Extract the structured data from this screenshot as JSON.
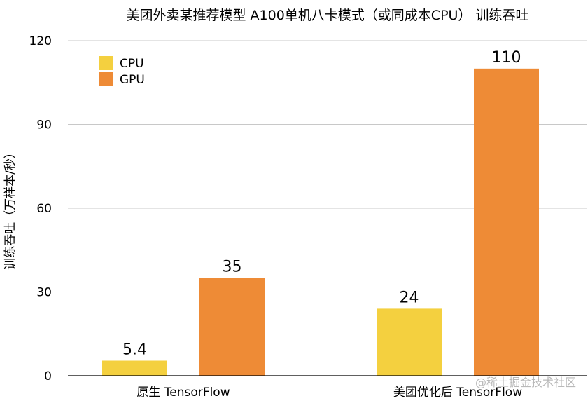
{
  "chart_data": {
    "type": "bar",
    "title": "美团外卖某推荐模型 A100单机八卡模式（或同成本CPU） 训练吞吐",
    "xlabel": "",
    "ylabel": "训练吞吐（万样本/秒）",
    "categories": [
      "原生 TensorFlow",
      "美团优化后 TensorFlow"
    ],
    "series": [
      {
        "name": "CPU",
        "values": [
          5.4,
          24
        ],
        "color": "#F4D03F"
      },
      {
        "name": "GPU",
        "values": [
          35,
          110
        ],
        "color": "#EE8B36"
      }
    ],
    "data_labels": [
      [
        "5.4",
        "24"
      ],
      [
        "35",
        "110"
      ]
    ],
    "ylim": [
      0,
      120
    ],
    "yticks": [
      "0",
      "30",
      "60",
      "90",
      "120"
    ],
    "ytick_values": [
      0,
      30,
      60,
      90,
      120
    ],
    "grid": true,
    "legend_position": "top-left"
  },
  "watermark": "@稀土掘金技术社区"
}
